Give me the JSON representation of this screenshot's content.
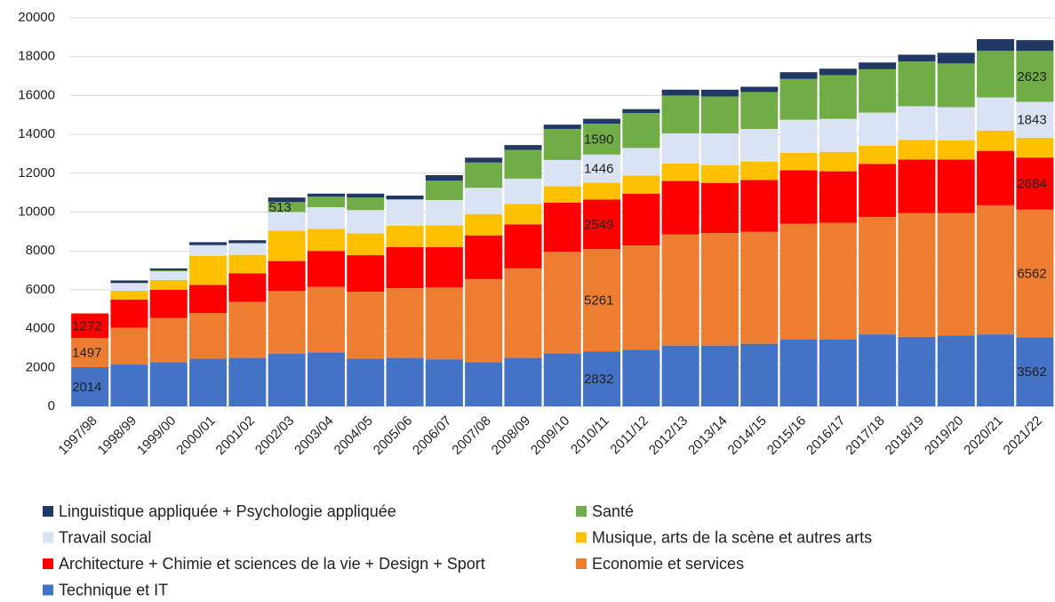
{
  "chart_data": {
    "type": "bar",
    "stacked": true,
    "categories": [
      "1997/98",
      "1998/99",
      "1999/00",
      "2000/01",
      "2001/02",
      "2002/03",
      "2003/04",
      "2004/05",
      "2005/06",
      "2006/07",
      "2007/08",
      "2008/09",
      "2009/10",
      "2010/11",
      "2011/12",
      "2012/13",
      "2013/14",
      "2014/15",
      "2015/16",
      "2016/17",
      "2017/18",
      "2018/19",
      "2019/20",
      "2020/21",
      "2021/22"
    ],
    "series": [
      {
        "name": "Technique et IT",
        "color": "#4472c4",
        "values": [
          2014,
          2150,
          2280,
          2450,
          2500,
          2700,
          2780,
          2450,
          2500,
          2420,
          2280,
          2500,
          2720,
          2832,
          2920,
          3130,
          3130,
          3220,
          3450,
          3450,
          3700,
          3580,
          3650,
          3700,
          3562
        ],
        "value_labels": [
          "2014",
          null,
          null,
          null,
          null,
          null,
          null,
          null,
          null,
          null,
          null,
          null,
          null,
          "2832",
          null,
          null,
          null,
          null,
          null,
          null,
          null,
          null,
          null,
          null,
          "3562"
        ]
      },
      {
        "name": "Economie et services",
        "color": "#ed7d31",
        "values": [
          1497,
          1900,
          2270,
          2350,
          2880,
          3250,
          3370,
          3450,
          3580,
          3700,
          4270,
          4600,
          5230,
          5261,
          5360,
          5720,
          5790,
          5760,
          5950,
          6000,
          6050,
          6370,
          6300,
          6650,
          6562
        ],
        "value_labels": [
          "1497",
          null,
          null,
          null,
          null,
          null,
          null,
          null,
          null,
          null,
          null,
          null,
          null,
          "5261",
          null,
          null,
          null,
          null,
          null,
          null,
          null,
          null,
          null,
          null,
          "6562"
        ]
      },
      {
        "name": "Architecture + Chimie et sciences de la vie + Design + Sport",
        "color": "#ff0000",
        "values": [
          1272,
          1450,
          1450,
          1450,
          1470,
          1530,
          1850,
          1880,
          2120,
          2080,
          2250,
          2270,
          2530,
          2549,
          2670,
          2750,
          2580,
          2670,
          2750,
          2650,
          2730,
          2750,
          2750,
          2800,
          2684
        ],
        "value_labels": [
          "1272",
          null,
          null,
          null,
          null,
          null,
          null,
          null,
          null,
          null,
          null,
          null,
          null,
          "2549",
          null,
          null,
          null,
          null,
          null,
          null,
          null,
          null,
          null,
          null,
          "2684"
        ]
      },
      {
        "name": "Musique, arts de la scène et autres arts",
        "color": "#ffc000",
        "values": [
          0,
          450,
          500,
          1500,
          950,
          1570,
          1130,
          1120,
          1100,
          1120,
          1100,
          1050,
          850,
          872,
          930,
          900,
          920,
          950,
          900,
          1000,
          940,
          1020,
          1000,
          1050,
          1022
        ]
      },
      {
        "name": "Travail social",
        "color": "#dae3f3",
        "values": [
          0,
          400,
          450,
          550,
          600,
          950,
          1120,
          1200,
          1350,
          1300,
          1350,
          1300,
          1350,
          1446,
          1420,
          1550,
          1630,
          1680,
          1700,
          1700,
          1700,
          1730,
          1700,
          1700,
          1843
        ],
        "value_labels": [
          null,
          null,
          null,
          null,
          null,
          null,
          null,
          null,
          null,
          null,
          null,
          null,
          null,
          "1446",
          null,
          null,
          null,
          null,
          null,
          null,
          null,
          null,
          null,
          null,
          "1843"
        ]
      },
      {
        "name": "Santé",
        "color": "#70ad47",
        "values": [
          0,
          0,
          50,
          0,
          0,
          513,
          550,
          650,
          0,
          1000,
          1300,
          1480,
          1600,
          1590,
          1800,
          1950,
          1900,
          1900,
          2100,
          2250,
          2230,
          2300,
          2250,
          2400,
          2623
        ],
        "value_labels": [
          null,
          null,
          null,
          null,
          null,
          "513",
          null,
          null,
          null,
          null,
          null,
          null,
          null,
          "1590",
          null,
          null,
          null,
          null,
          null,
          null,
          null,
          null,
          null,
          null,
          "2623"
        ]
      },
      {
        "name": "Linguistique appliquée + Psychologie appliquée",
        "color": "#203864",
        "values": [
          0,
          130,
          100,
          150,
          150,
          237,
          150,
          200,
          200,
          280,
          250,
          250,
          220,
          250,
          200,
          300,
          350,
          270,
          350,
          330,
          350,
          350,
          550,
          600,
          554
        ]
      }
    ],
    "ylim": [
      0,
      20000
    ],
    "yticks": [
      0,
      2000,
      4000,
      6000,
      8000,
      10000,
      12000,
      14000,
      16000,
      18000,
      20000
    ],
    "grid": true
  }
}
